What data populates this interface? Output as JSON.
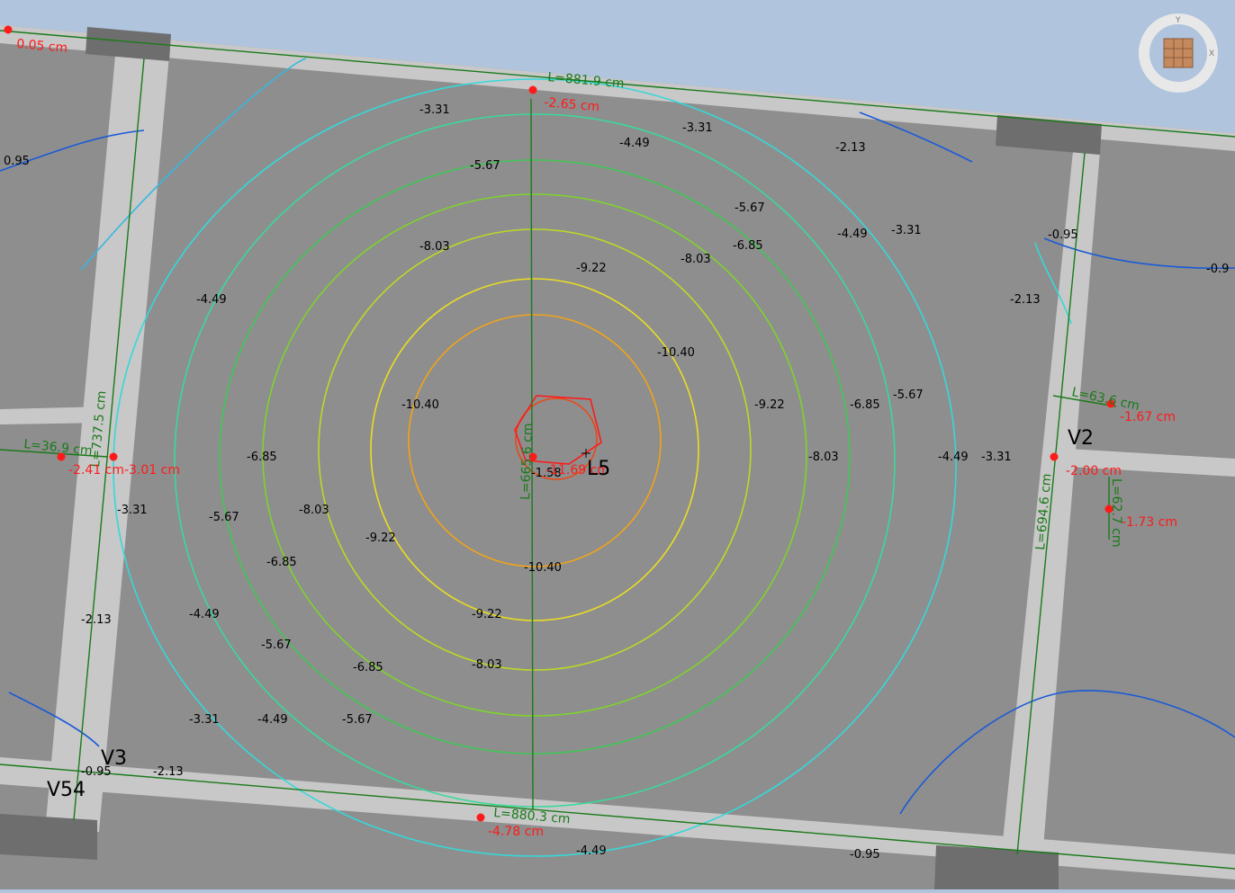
{
  "window": {
    "title": ""
  },
  "contour_labels": [
    {
      "t": "-3.31"
    },
    {
      "t": "-3.31"
    },
    {
      "t": "-4.49"
    },
    {
      "t": "-2.13"
    },
    {
      "t": "-5.67"
    },
    {
      "t": "-5.67"
    },
    {
      "t": "-4.49"
    },
    {
      "t": "-3.31"
    },
    {
      "t": "-8.03"
    },
    {
      "t": "-6.85"
    },
    {
      "t": "-8.03"
    },
    {
      "t": "-9.22"
    },
    {
      "t": "-4.49"
    },
    {
      "t": "-10.40"
    },
    {
      "t": "-10.40"
    },
    {
      "t": "-9.22"
    },
    {
      "t": "-6.85"
    },
    {
      "t": "-5.67"
    },
    {
      "t": "-6.85"
    },
    {
      "t": "-8.03"
    },
    {
      "t": "-4.49"
    },
    {
      "t": "-3.31"
    },
    {
      "t": "-3.31"
    },
    {
      "t": "-5.67"
    },
    {
      "t": "-8.03"
    },
    {
      "t": "-9.22"
    },
    {
      "t": "-6.85"
    },
    {
      "t": "-10.40"
    },
    {
      "t": "-9.22"
    },
    {
      "t": "-2.13"
    },
    {
      "t": "-4.49"
    },
    {
      "t": "-5.67"
    },
    {
      "t": "-6.85"
    },
    {
      "t": "-8.03"
    },
    {
      "t": "-3.31"
    },
    {
      "t": "-4.49"
    },
    {
      "t": "-5.67"
    },
    {
      "t": "-2.13"
    },
    {
      "t": "-2.13"
    },
    {
      "t": "-4.49"
    },
    {
      "t": "-0.95"
    },
    {
      "t": "0.95"
    },
    {
      "t": "-0.95"
    },
    {
      "t": "-0.95"
    },
    {
      "t": "-0.9"
    },
    {
      "t": "-1.58"
    }
  ],
  "dimensions": [
    {
      "t": "L=881.9 cm"
    },
    {
      "t": "L=880.3 cm"
    },
    {
      "t": "L=665.6 cm"
    },
    {
      "t": "L=737.5 cm"
    },
    {
      "t": "L=694.6 cm"
    },
    {
      "t": "L=36.9 cm"
    },
    {
      "t": "L=63.6 cm"
    },
    {
      "t": "L=62.7 cm"
    }
  ],
  "displacements": [
    {
      "t": "0.05 cm"
    },
    {
      "t": "-2.65 cm"
    },
    {
      "t": "-4.78 cm"
    },
    {
      "t": "-2.41 cm"
    },
    {
      "t": "-3.01 cm"
    },
    {
      "t": "-11.69 cm"
    },
    {
      "t": "-1.67 cm"
    },
    {
      "t": "-2.00 cm"
    },
    {
      "t": "-1.73 cm"
    }
  ],
  "element_tags": [
    {
      "t": "L5"
    },
    {
      "t": "V2"
    },
    {
      "t": "V3"
    },
    {
      "t": "V54"
    }
  ],
  "nav_cube": {
    "axis_y": "Y",
    "axis_x": "X"
  },
  "colors": {
    "sky": "#b0c4de",
    "slab": "#8e8e8e",
    "beam": "#c8c8c8",
    "pillar": "#6e6e6e",
    "dim_green": "#1a7a1a",
    "disp_red": "#ff1a1a"
  }
}
